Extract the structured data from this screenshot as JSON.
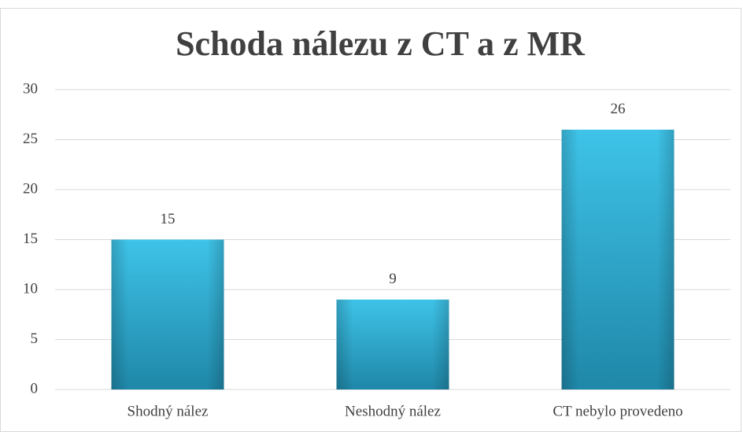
{
  "chart_data": {
    "type": "bar",
    "title": "Schoda nálezu z CT a z MR",
    "categories": [
      "Shodný nález",
      "Neshodný nález",
      "CT nebylo provedeno"
    ],
    "values": [
      15,
      9,
      26
    ],
    "color": "#31b3d9",
    "ylim": [
      0,
      30
    ],
    "yticks": [
      0,
      5,
      10,
      15,
      20,
      25,
      30
    ],
    "grid": true
  }
}
